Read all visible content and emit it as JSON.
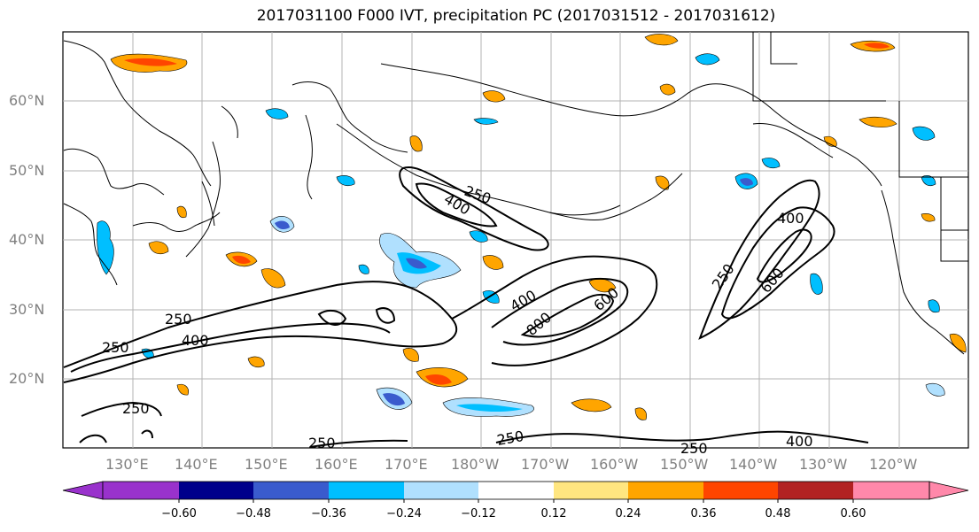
{
  "title": "2017031100 F000 IVT, precipitation PC (2017031512 - 2017031612)",
  "lat_labels": [
    "60°N",
    "50°N",
    "40°N",
    "30°N",
    "20°N"
  ],
  "lon_labels": [
    "130°E",
    "140°E",
    "150°E",
    "160°E",
    "170°E",
    "180°W",
    "170°W",
    "160°W",
    "150°W",
    "140°W",
    "130°W",
    "120°W"
  ],
  "contour_labels": [
    "250",
    "400",
    "250",
    "400",
    "250",
    "400",
    "600",
    "800",
    "250",
    "400",
    "600",
    "250",
    "250",
    "250",
    "250",
    "400"
  ],
  "colorbar": {
    "ticks": [
      "−0.60",
      "−0.48",
      "−0.36",
      "−0.24",
      "−0.12",
      "0.12",
      "0.24",
      "0.36",
      "0.48",
      "0.60"
    ],
    "colors": [
      "#9932cc",
      "#00008b",
      "#3a5bcd",
      "#00bfff",
      "#b0e0fe",
      "#ffffff",
      "#ffe680",
      "#ffa500",
      "#ff4500",
      "#b22222",
      "#ff88aa"
    ]
  },
  "colors": {
    "positive_low": "#ffe680",
    "positive_mid": "#ffa500",
    "positive_high": "#ff4500",
    "negative_low": "#b0e0fe",
    "negative_mid": "#00bfff",
    "negative_high": "#3a5bcd",
    "grid": "#b3b3b3",
    "coast": "#000000",
    "ivt_contour": "#000000"
  }
}
